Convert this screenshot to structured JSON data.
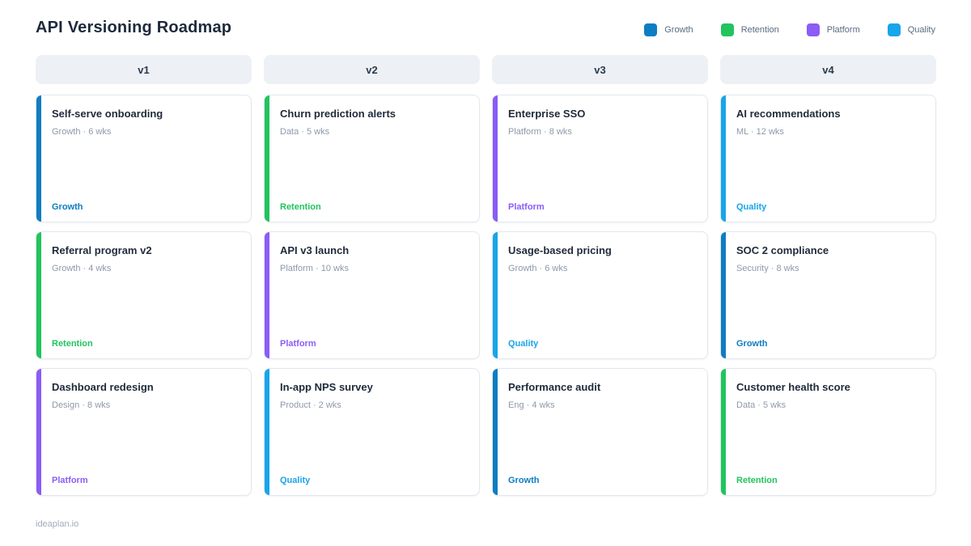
{
  "page": {
    "title": "API Versioning Roadmap",
    "footer": "ideaplan.io"
  },
  "palette": {
    "Growth": "#0e7dc2",
    "Retention": "#21c45d",
    "Platform": "#8b5cf6",
    "Quality": "#18a5ea"
  },
  "legend": [
    {
      "label": "Growth"
    },
    {
      "label": "Retention"
    },
    {
      "label": "Platform"
    },
    {
      "label": "Quality"
    }
  ],
  "columns": [
    {
      "header": "v1",
      "cards": [
        {
          "title": "Self-serve onboarding",
          "meta": "Growth · 6 wks",
          "tag": "Growth"
        },
        {
          "title": "Referral program v2",
          "meta": "Growth · 4 wks",
          "tag": "Retention"
        },
        {
          "title": "Dashboard redesign",
          "meta": "Design · 8 wks",
          "tag": "Platform"
        }
      ]
    },
    {
      "header": "v2",
      "cards": [
        {
          "title": "Churn prediction alerts",
          "meta": "Data · 5 wks",
          "tag": "Retention"
        },
        {
          "title": "API v3 launch",
          "meta": "Platform · 10 wks",
          "tag": "Platform"
        },
        {
          "title": "In-app NPS survey",
          "meta": "Product · 2 wks",
          "tag": "Quality"
        }
      ]
    },
    {
      "header": "v3",
      "cards": [
        {
          "title": "Enterprise SSO",
          "meta": "Platform · 8 wks",
          "tag": "Platform"
        },
        {
          "title": "Usage-based pricing",
          "meta": "Growth · 6 wks",
          "tag": "Quality"
        },
        {
          "title": "Performance audit",
          "meta": "Eng · 4 wks",
          "tag": "Growth"
        }
      ]
    },
    {
      "header": "v4",
      "cards": [
        {
          "title": "AI recommendations",
          "meta": "ML · 12 wks",
          "tag": "Quality"
        },
        {
          "title": "SOC 2 compliance",
          "meta": "Security · 8 wks",
          "tag": "Growth"
        },
        {
          "title": "Customer health score",
          "meta": "Data · 5 wks",
          "tag": "Retention"
        }
      ]
    }
  ]
}
